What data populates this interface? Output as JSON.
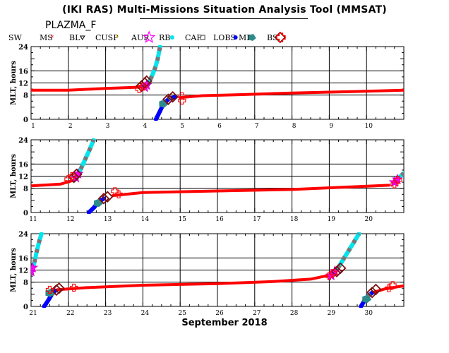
{
  "title": "(IKI RAS) Multi-Missions Situation Analysis Tool (MMSAT)",
  "mission": "PLAZMA_F",
  "legend": [
    {
      "key": "sw",
      "label": "SW",
      "color": "#000000",
      "symbol": "none"
    },
    {
      "key": "ms",
      "label": "MS",
      "color": "#ff0000",
      "symbol": "star"
    },
    {
      "key": "bl",
      "label": "BL",
      "color": "#000000",
      "symbol": "triangle-down"
    },
    {
      "key": "cusp",
      "label": "CUSP",
      "color": "#ffd700",
      "symbol": "star"
    },
    {
      "key": "aur",
      "label": "AUR",
      "color": "#ff00ff",
      "symbol": "star-open"
    },
    {
      "key": "rb",
      "label": "RB",
      "color": "#00e5ee",
      "symbol": "circle"
    },
    {
      "key": "cap",
      "label": "CAP",
      "color": "#777777",
      "symbol": "square-open"
    },
    {
      "key": "lobs",
      "label": "LOBS",
      "color": "#0000ff",
      "symbol": "circle"
    },
    {
      "key": "mp",
      "label": "MP",
      "color": "#2e8b8b",
      "symbol": "pentagon"
    },
    {
      "key": "bs",
      "label": "BS",
      "color": "#7b1010",
      "symbol": "diamond-open"
    },
    {
      "key": "cross",
      "label": "",
      "color": "#ff0000",
      "symbol": "cross-open"
    }
  ],
  "chart_data": [
    {
      "type": "scatter",
      "ylabel": "MLT, hours",
      "xlim": [
        1,
        11
      ],
      "ylim": [
        0,
        24
      ],
      "yticks": [
        "0",
        "8",
        "12",
        "16",
        "24"
      ],
      "xticks": [
        "1",
        "2",
        "3",
        "4",
        "5",
        "6",
        "7",
        "8",
        "9",
        "10"
      ],
      "sw_track": [
        [
          1.0,
          9.6
        ],
        [
          2.0,
          9.6
        ],
        [
          3.0,
          10.2
        ],
        [
          3.9,
          10.6
        ],
        [
          4.1,
          10.8
        ]
      ],
      "sw_track2": [
        [
          5.0,
          7.2
        ],
        [
          5.6,
          7.8
        ],
        [
          6.5,
          8.1
        ],
        [
          8.0,
          8.7
        ],
        [
          9.5,
          9.1
        ],
        [
          11.0,
          9.6
        ]
      ],
      "inbound": [
        [
          4.05,
          10.6
        ],
        [
          4.15,
          12.0
        ],
        [
          4.25,
          14.5
        ],
        [
          4.33,
          17.0
        ],
        [
          4.4,
          20.0
        ],
        [
          4.46,
          24.0
        ]
      ],
      "outbound": [
        [
          4.35,
          0.0
        ],
        [
          4.45,
          2.5
        ],
        [
          4.55,
          5.0
        ],
        [
          4.7,
          6.8
        ],
        [
          4.85,
          7.3
        ]
      ],
      "bs": [
        [
          3.96,
          11.0
        ],
        [
          4.05,
          12.0
        ],
        [
          4.1,
          12.6
        ],
        [
          4.68,
          6.6
        ],
        [
          4.8,
          7.4
        ]
      ],
      "cross": [
        [
          3.9,
          10.0
        ],
        [
          4.0,
          10.8
        ],
        [
          5.05,
          6.2
        ],
        [
          5.05,
          7.6
        ]
      ],
      "mp": [
        [
          4.55,
          5.2
        ]
      ]
    },
    {
      "type": "scatter",
      "ylabel": "MLT, hours",
      "xlim": [
        11,
        21
      ],
      "ylim": [
        0,
        24
      ],
      "yticks": [
        "0",
        "8",
        "12",
        "16",
        "24"
      ],
      "xticks": [
        "11",
        "12",
        "13",
        "14",
        "15",
        "16",
        "17",
        "18",
        "19",
        "20"
      ],
      "sw_track": [
        [
          11.0,
          8.8
        ],
        [
          11.8,
          9.4
        ],
        [
          12.1,
          10.5
        ]
      ],
      "sw_track2": [
        [
          13.2,
          5.6
        ],
        [
          14.0,
          6.6
        ],
        [
          16.0,
          7.1
        ],
        [
          18.0,
          7.6
        ],
        [
          19.5,
          8.4
        ],
        [
          20.6,
          9.0
        ]
      ],
      "inbound": [
        [
          12.2,
          11.5
        ],
        [
          12.32,
          14.0
        ],
        [
          12.45,
          17.5
        ],
        [
          12.58,
          21.0
        ],
        [
          12.68,
          24.0
        ]
      ],
      "outbound": [
        [
          12.55,
          0.0
        ],
        [
          12.7,
          1.8
        ],
        [
          12.8,
          3.5
        ],
        [
          12.95,
          4.6
        ]
      ],
      "inbound2": [
        [
          20.75,
          10.0
        ],
        [
          20.9,
          11.8
        ],
        [
          21.0,
          13.0
        ]
      ],
      "bs": [
        [
          12.15,
          11.6
        ],
        [
          12.22,
          12.6
        ],
        [
          12.95,
          4.6
        ],
        [
          13.05,
          5.2
        ]
      ],
      "cross": [
        [
          12.0,
          11.0
        ],
        [
          12.1,
          12.0
        ],
        [
          13.35,
          6.0
        ],
        [
          13.25,
          7.0
        ],
        [
          20.75,
          9.3
        ],
        [
          20.85,
          10.8
        ]
      ],
      "mp": [
        [
          12.8,
          3.2
        ]
      ]
    },
    {
      "type": "scatter",
      "ylabel": "MLT, hours",
      "xlim": [
        21,
        31
      ],
      "ylim": [
        0,
        24
      ],
      "yticks": [
        "0",
        "8",
        "12",
        "16",
        "24"
      ],
      "xticks": [
        "21",
        "22",
        "23",
        "24",
        "25",
        "26",
        "27",
        "28",
        "29",
        "30"
      ],
      "xlabel": "September 2018",
      "inbound": [
        [
          21.0,
          11.5
        ],
        [
          21.08,
          14.0
        ],
        [
          21.15,
          18.0
        ],
        [
          21.22,
          21.5
        ],
        [
          21.28,
          24.0
        ]
      ],
      "outbound": [
        [
          21.35,
          0.0
        ],
        [
          21.45,
          1.8
        ],
        [
          21.55,
          3.8
        ],
        [
          21.65,
          5.2
        ]
      ],
      "sw_track": [
        [
          21.7,
          5.5
        ],
        [
          22.5,
          6.2
        ],
        [
          24.0,
          7.0
        ],
        [
          26.0,
          7.5
        ],
        [
          27.5,
          8.2
        ],
        [
          28.5,
          9.0
        ],
        [
          29.0,
          10.3
        ]
      ],
      "inbound2": [
        [
          29.05,
          10.2
        ],
        [
          29.25,
          13.0
        ],
        [
          29.45,
          17.0
        ],
        [
          29.65,
          21.0
        ],
        [
          29.8,
          24.0
        ]
      ],
      "outbound2": [
        [
          29.85,
          0.0
        ],
        [
          29.95,
          2.0
        ],
        [
          30.05,
          3.5
        ],
        [
          30.15,
          4.5
        ]
      ],
      "sw_track2": [
        [
          30.15,
          4.5
        ],
        [
          30.5,
          5.8
        ],
        [
          31.0,
          6.8
        ]
      ],
      "bs": [
        [
          21.68,
          5.4
        ],
        [
          21.75,
          6.0
        ],
        [
          29.2,
          11.5
        ],
        [
          29.3,
          12.6
        ],
        [
          30.15,
          4.6
        ],
        [
          30.25,
          5.6
        ]
      ],
      "cross": [
        [
          21.5,
          5.5
        ],
        [
          22.15,
          6.2
        ],
        [
          29.0,
          10.0
        ],
        [
          29.1,
          11.0
        ],
        [
          30.6,
          6.0
        ],
        [
          30.7,
          7.0
        ]
      ],
      "mp": [
        [
          21.5,
          4.5
        ],
        [
          30.0,
          2.5
        ]
      ]
    }
  ]
}
